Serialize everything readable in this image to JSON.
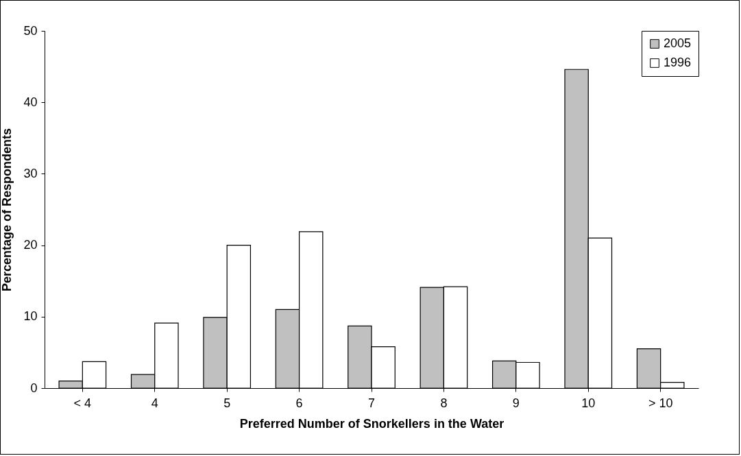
{
  "chart_data": {
    "type": "bar",
    "xlabel": "Preferred Number of Snorkellers in the Water",
    "ylabel": "Percentage of Respondents",
    "categories": [
      "< 4",
      "4",
      "5",
      "6",
      "7",
      "8",
      "9",
      "10",
      "> 10"
    ],
    "series": [
      {
        "name": "2005",
        "color": "#c0c0c0",
        "values": [
          1.0,
          1.9,
          9.9,
          11.0,
          8.7,
          14.1,
          3.8,
          44.6,
          5.5
        ]
      },
      {
        "name": "1996",
        "color": "#ffffff",
        "values": [
          3.7,
          9.1,
          20.0,
          21.9,
          5.8,
          14.2,
          3.6,
          21.0,
          0.8
        ]
      }
    ],
    "ylim": [
      0,
      50
    ],
    "yticks": [
      0,
      10,
      20,
      30,
      40,
      50
    ],
    "grid": false,
    "legend": "top right"
  }
}
